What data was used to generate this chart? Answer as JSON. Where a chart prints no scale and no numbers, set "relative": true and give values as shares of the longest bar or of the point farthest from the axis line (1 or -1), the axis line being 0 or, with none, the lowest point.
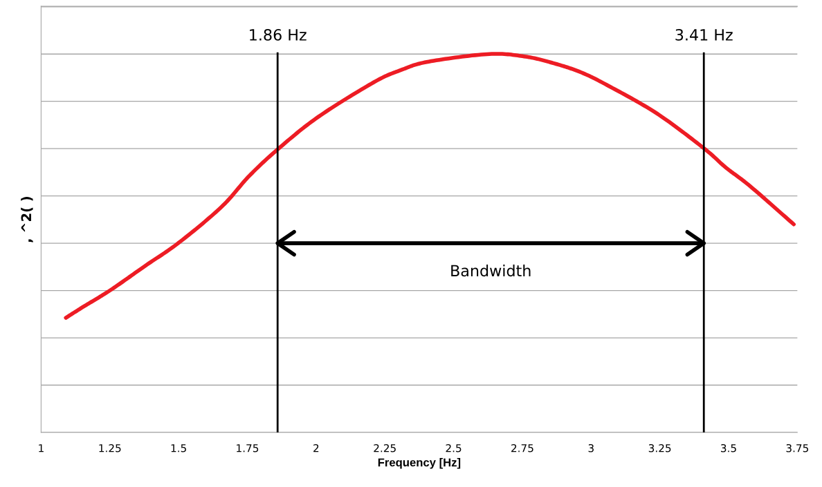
{
  "chart_data": {
    "type": "line",
    "xlabel": "Frequency [Hz]",
    "ylabel": ", ^2( )",
    "relative": true,
    "x": [
      1.09,
      1.151,
      1.254,
      1.38,
      1.5,
      1.656,
      1.757,
      1.865,
      2.008,
      2.209,
      2.31,
      2.41,
      2.63,
      2.762,
      2.862,
      2.962,
      3.063,
      3.239,
      3.41,
      3.49,
      3.578,
      3.737
    ],
    "series": [
      {
        "color": "#ed1c24",
        "values": [
          0.303,
          0.331,
          0.377,
          0.441,
          0.501,
          0.596,
          0.678,
          0.751,
          0.834,
          0.925,
          0.958,
          0.98,
          1.0,
          0.993,
          0.976,
          0.952,
          0.916,
          0.843,
          0.751,
          0.7,
          0.651,
          0.55
        ]
      },
      {
        "type": "line",
        "color": "#000000",
        "x": [
          1.86,
          3.41
        ],
        "values": [
          0.5,
          0.5
        ]
      }
    ],
    "xlim": [
      1,
      3.75
    ],
    "xticks": [
      1,
      1.25,
      1.5,
      1.75,
      2,
      2.25,
      2.5,
      2.75,
      3,
      3.25,
      3.5,
      3.75
    ],
    "ref_lines": [
      {
        "axis": "x",
        "value": 1.86,
        "label": "1.86 Hz",
        "color": "#000000"
      },
      {
        "axis": "x",
        "value": 3.41,
        "label": "3.41 Hz",
        "color": "#000000"
      }
    ],
    "annotations": [
      "Bandwidth"
    ],
    "grid": "y",
    "legend": false,
    "marker": "none",
    "line_style": "solid"
  }
}
